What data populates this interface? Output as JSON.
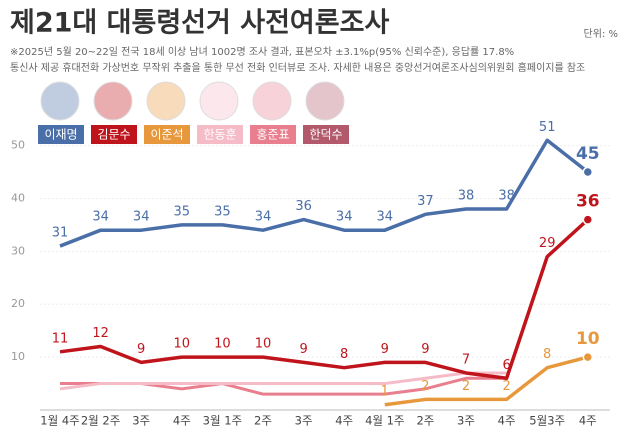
{
  "chart_data": {
    "type": "line",
    "title": "제21대 대통령선거 사전여론조사",
    "unit": "단위: %",
    "notes": [
      "※2025년 5월 20~22일 전국 18세 이상 남녀 1002명 조사 결과, 표본오차 ±3.1%p(95% 신뢰수준), 응답률 17.8%",
      "통신사 제공 휴대전화 가상번호 무작위 추출을 통한 무선 전화 인터뷰로 조사. 자세한 내용은 중앙선거여론조사심의위원회 홈페이지를 참조"
    ],
    "categories": [
      "1월 4주",
      "2월 2주",
      "3주",
      "4주",
      "3월 1주",
      "2주",
      "3주",
      "4주",
      "4월 1주",
      "2주",
      "3주",
      "4주",
      "5월3주",
      "4주"
    ],
    "ylim": [
      0,
      52
    ],
    "yticks": [
      10,
      20,
      30,
      40,
      50
    ],
    "grid": true,
    "series": [
      {
        "name": "이재명",
        "color": "#4a6fa8",
        "labeled": true,
        "values": [
          31,
          34,
          34,
          35,
          35,
          34,
          36,
          34,
          34,
          37,
          38,
          38,
          51,
          45
        ]
      },
      {
        "name": "김문수",
        "color": "#c0141c",
        "labeled": true,
        "values": [
          11,
          12,
          9,
          10,
          10,
          10,
          9,
          8,
          9,
          9,
          7,
          6,
          29,
          36
        ]
      },
      {
        "name": "이준석",
        "color": "#e8983c",
        "labeled": true,
        "values": [
          null,
          null,
          null,
          null,
          null,
          null,
          null,
          null,
          1,
          2,
          2,
          2,
          8,
          10
        ]
      },
      {
        "name": "한동훈",
        "color": "#f5bcc8",
        "labeled": false,
        "values": [
          4,
          5,
          5,
          5,
          5,
          5,
          5,
          5,
          5,
          6,
          7,
          7,
          null,
          null
        ]
      },
      {
        "name": "홍준표",
        "color": "#e87e8e",
        "labeled": false,
        "values": [
          5,
          5,
          5,
          4,
          5,
          3,
          3,
          3,
          3,
          4,
          6,
          6,
          null,
          null
        ]
      },
      {
        "name": "한덕수",
        "color": "#b25a6c",
        "labeled": false,
        "values": [
          null,
          null,
          null,
          null,
          null,
          null,
          null,
          null,
          null,
          null,
          7,
          7,
          null,
          null
        ]
      }
    ]
  }
}
